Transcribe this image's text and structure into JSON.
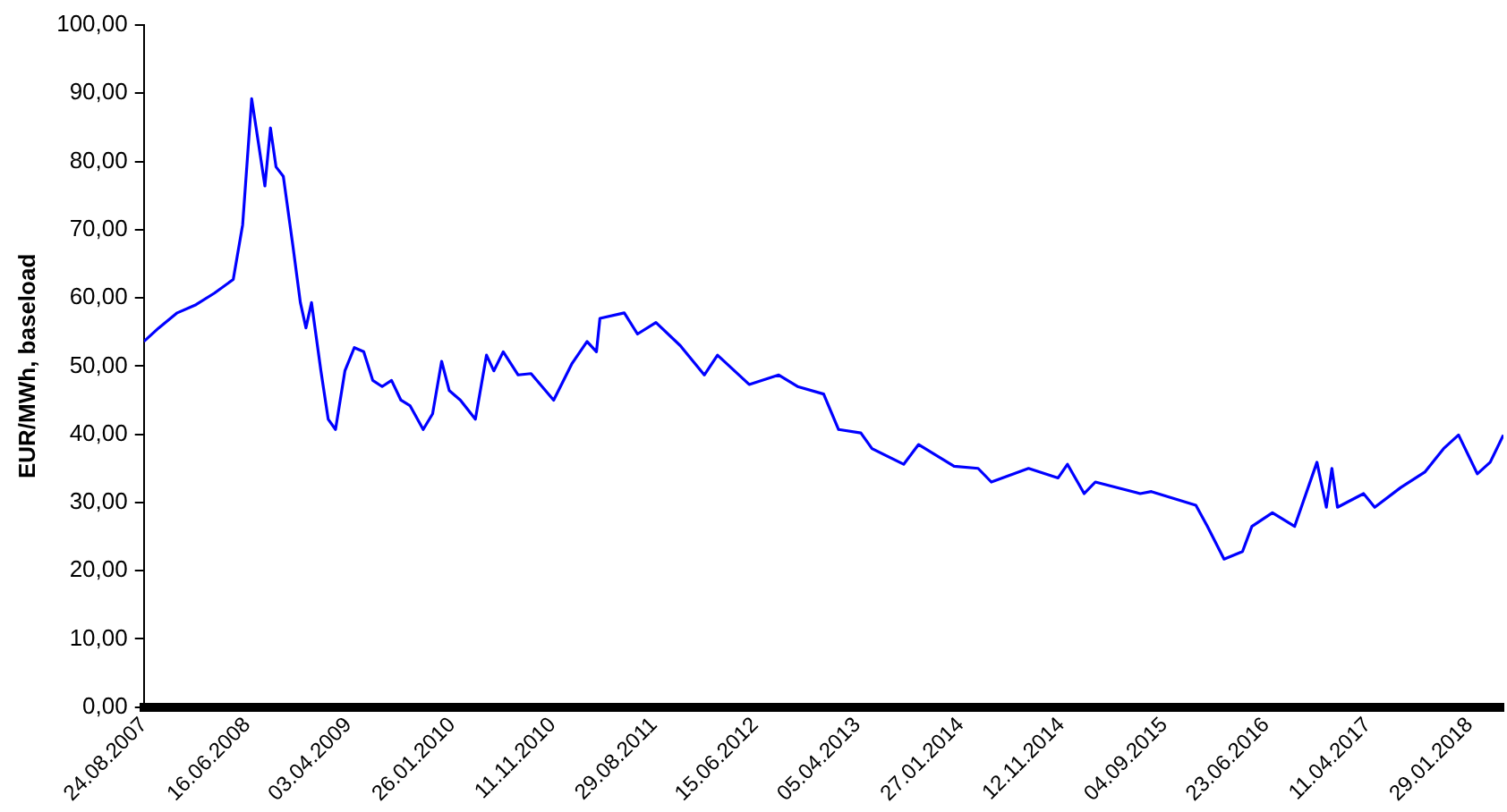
{
  "chart_data": {
    "type": "line",
    "ylabel": "EUR/MWh, baseload",
    "x": [
      "2007-08-24",
      "2007-10-06",
      "2007-11-28",
      "2008-01-21",
      "2008-03-14",
      "2008-05-07",
      "2008-06-03",
      "2008-06-29",
      "2008-07-16",
      "2008-08-06",
      "2008-08-22",
      "2008-09-07",
      "2008-09-28",
      "2008-10-25",
      "2008-11-16",
      "2008-12-02",
      "2008-12-18",
      "2009-01-14",
      "2009-02-04",
      "2009-02-25",
      "2009-03-24",
      "2009-04-20",
      "2009-05-17",
      "2009-06-12",
      "2009-07-09",
      "2009-08-05",
      "2009-09-01",
      "2009-09-27",
      "2009-11-04",
      "2009-12-01",
      "2009-12-27",
      "2010-01-18",
      "2010-02-19",
      "2010-04-03",
      "2010-05-05",
      "2010-05-26",
      "2010-06-22",
      "2010-08-04",
      "2010-09-10",
      "2010-11-14",
      "2011-01-06",
      "2011-02-18",
      "2011-03-17",
      "2011-03-27",
      "2011-06-05",
      "2011-07-13",
      "2011-09-04",
      "2011-11-13",
      "2012-01-21",
      "2012-02-28",
      "2012-05-29",
      "2012-08-22",
      "2012-10-15",
      "2012-12-29",
      "2013-02-10",
      "2013-04-15",
      "2013-05-17",
      "2013-08-16",
      "2013-09-28",
      "2014-01-08",
      "2014-03-18",
      "2014-04-25",
      "2014-08-10",
      "2014-11-03",
      "2014-11-30",
      "2015-01-17",
      "2015-02-18",
      "2015-06-27",
      "2015-07-29",
      "2015-12-04",
      "2016-01-06",
      "2016-02-23",
      "2016-04-16",
      "2016-05-13",
      "2016-07-11",
      "2016-09-13",
      "2016-11-16",
      "2016-12-13",
      "2016-12-29",
      "2017-01-14",
      "2017-03-30",
      "2017-05-01",
      "2017-07-15",
      "2017-09-23",
      "2017-11-15",
      "2017-12-28",
      "2018-02-20",
      "2018-03-29",
      "2018-05-06"
    ],
    "series": [
      {
        "color": "#0000ff",
        "values": [
          53.6,
          55.6,
          57.8,
          59,
          60.7,
          62.7,
          70.7,
          89.2,
          83.5,
          76.4,
          84.9,
          79.2,
          77.8,
          67.8,
          59.3,
          55.6,
          59.3,
          49.3,
          42.2,
          40.7,
          49.3,
          52.7,
          52.1,
          47.9,
          47,
          47.9,
          45,
          44.2,
          40.7,
          43,
          50.7,
          46.4,
          45,
          42.2,
          51.6,
          49.3,
          52.1,
          48.7,
          48.9,
          45,
          50.4,
          53.6,
          52.1,
          57,
          57.8,
          54.7,
          56.4,
          53,
          48.7,
          51.6,
          47.3,
          48.7,
          47,
          45.9,
          40.7,
          40.2,
          37.9,
          35.6,
          38.5,
          35.3,
          35,
          33,
          35,
          33.6,
          35.6,
          31.3,
          33,
          31.3,
          31.6,
          29.6,
          26.5,
          21.7,
          22.8,
          26.5,
          28.5,
          26.5,
          35.9,
          29.3,
          35,
          29.3,
          31.3,
          29.3,
          32.2,
          34.5,
          37.9,
          39.9,
          34.2,
          35.9,
          39.9
        ]
      }
    ],
    "xlim": [
      "2007-08-24",
      "2018-05-06"
    ],
    "xticks": [
      {
        "value": "2007-08-24",
        "label": "24.08.2007"
      },
      {
        "value": "2008-06-16",
        "label": "16.06.2008"
      },
      {
        "value": "2009-04-03",
        "label": "03.04.2009"
      },
      {
        "value": "2010-01-26",
        "label": "26.01.2010"
      },
      {
        "value": "2010-11-11",
        "label": "11.11.2010"
      },
      {
        "value": "2011-08-29",
        "label": "29.08.2011"
      },
      {
        "value": "2012-06-15",
        "label": "15.06.2012"
      },
      {
        "value": "2013-04-05",
        "label": "05.04.2013"
      },
      {
        "value": "2014-01-27",
        "label": "27.01.2014"
      },
      {
        "value": "2014-11-12",
        "label": "12.11.2014"
      },
      {
        "value": "2015-09-04",
        "label": "04.09.2015"
      },
      {
        "value": "2016-06-23",
        "label": "23.06.2016"
      },
      {
        "value": "2017-04-11",
        "label": "11.04.2017"
      },
      {
        "value": "2018-01-29",
        "label": "29.01.2018"
      }
    ],
    "ylim": [
      0,
      100
    ],
    "yticks": [
      {
        "value": 0,
        "label": "0,00"
      },
      {
        "value": 10,
        "label": "10,00"
      },
      {
        "value": 20,
        "label": "20,00"
      },
      {
        "value": 30,
        "label": "30,00"
      },
      {
        "value": 40,
        "label": "40,00"
      },
      {
        "value": 50,
        "label": "50,00"
      },
      {
        "value": 60,
        "label": "60,00"
      },
      {
        "value": 70,
        "label": "70,00"
      },
      {
        "value": 80,
        "label": "80,00"
      },
      {
        "value": 90,
        "label": "90,00"
      },
      {
        "value": 100,
        "label": "100,00"
      }
    ],
    "grid": false,
    "legend": false,
    "marker": "none",
    "line_style": "solid"
  }
}
